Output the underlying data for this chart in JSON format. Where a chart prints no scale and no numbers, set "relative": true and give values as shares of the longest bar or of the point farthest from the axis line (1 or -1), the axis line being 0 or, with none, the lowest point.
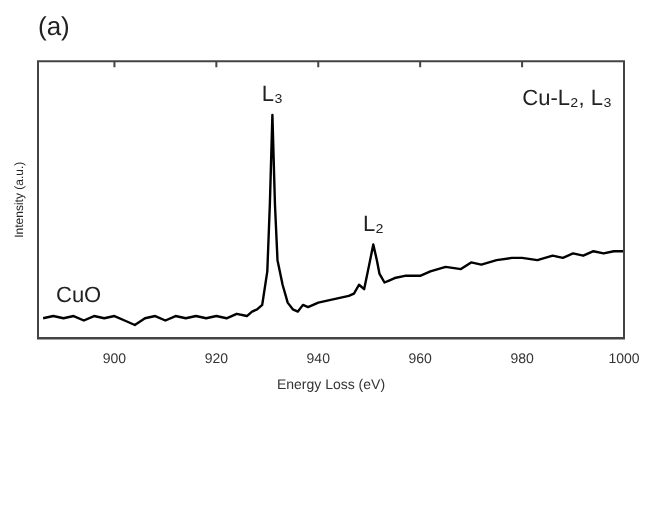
{
  "chart_data": {
    "type": "line",
    "title": "(a)",
    "xlabel": "Energy Loss (eV)",
    "ylabel": "Intensity (a.u.)",
    "relative": true,
    "xlim": [
      885,
      1000
    ],
    "xticks": [
      900,
      920,
      940,
      960,
      980,
      1000
    ],
    "grid": false,
    "legend": false,
    "marker": "none",
    "line_style": "solid",
    "series": [
      {
        "color": "#000000",
        "x": [
          886,
          888,
          890,
          892,
          894,
          896,
          898,
          900,
          902,
          904,
          906,
          908,
          910,
          912,
          914,
          916,
          918,
          920,
          922,
          924,
          926,
          927,
          928,
          929,
          930,
          930.5,
          931,
          931.5,
          932,
          933,
          934,
          935,
          936,
          937,
          938,
          940,
          942,
          944,
          946,
          947,
          948,
          949,
          950,
          950.8,
          951.5,
          952,
          953,
          954,
          955,
          957,
          960,
          962,
          965,
          968,
          970,
          972,
          975,
          978,
          980,
          983,
          986,
          988,
          990,
          992,
          994,
          996,
          998,
          1000
        ],
        "values": [
          0.09,
          0.1,
          0.09,
          0.1,
          0.08,
          0.1,
          0.09,
          0.1,
          0.08,
          0.06,
          0.09,
          0.1,
          0.08,
          0.1,
          0.09,
          0.1,
          0.09,
          0.1,
          0.09,
          0.11,
          0.1,
          0.12,
          0.13,
          0.15,
          0.3,
          0.6,
          1.0,
          0.6,
          0.35,
          0.24,
          0.16,
          0.13,
          0.12,
          0.15,
          0.14,
          0.16,
          0.17,
          0.18,
          0.19,
          0.2,
          0.24,
          0.22,
          0.33,
          0.42,
          0.35,
          0.29,
          0.25,
          0.26,
          0.27,
          0.28,
          0.28,
          0.3,
          0.32,
          0.31,
          0.34,
          0.33,
          0.35,
          0.36,
          0.36,
          0.35,
          0.37,
          0.36,
          0.38,
          0.37,
          0.39,
          0.38,
          0.39,
          0.39
        ]
      }
    ],
    "annotations": [
      {
        "text": "L₃",
        "x": 931,
        "y": 1.0
      },
      {
        "text": "L₂",
        "x": 950.8,
        "y": 0.42
      },
      "Cu-L₂, L₃",
      "CuO"
    ]
  }
}
